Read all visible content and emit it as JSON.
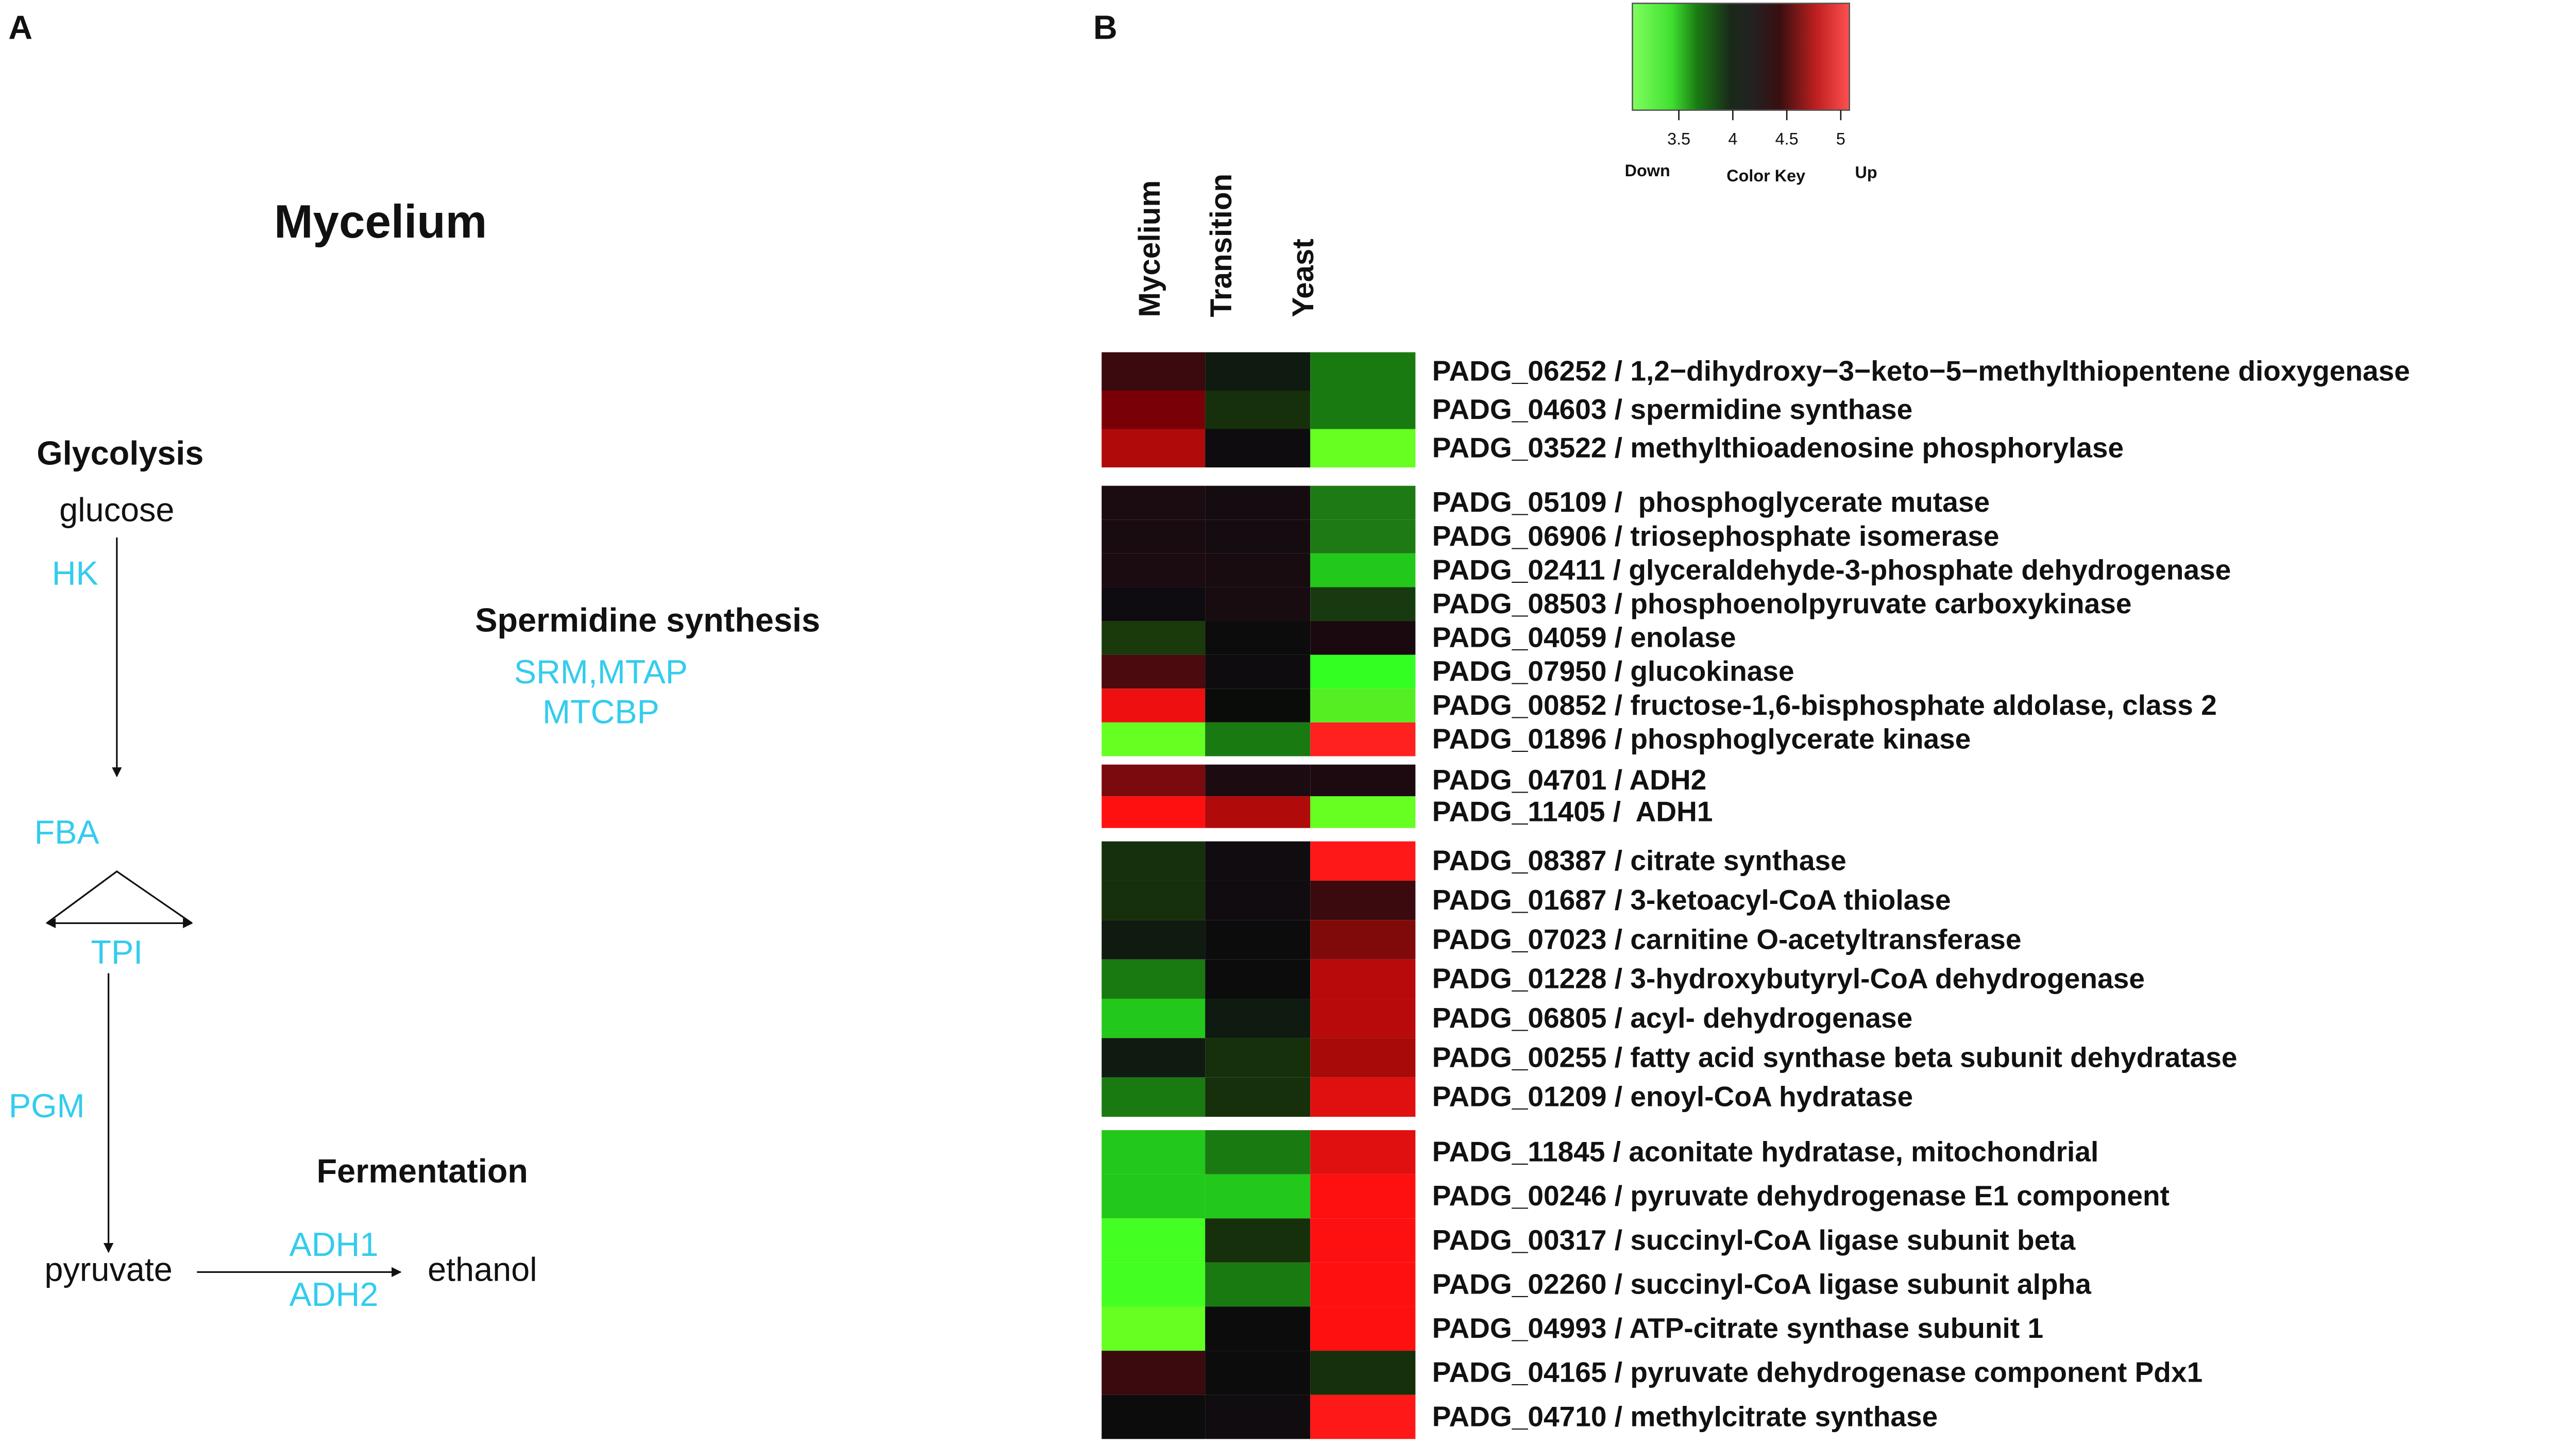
{
  "panel_a": {
    "label": "A",
    "title": "Mycelium",
    "glycolysis": {
      "title": "Glycolysis",
      "glucose": "glucose",
      "enzymes": [
        "HK",
        "FBA",
        "TPI",
        "PGM"
      ],
      "pyruvate": "pyruvate"
    },
    "fermentation": {
      "title": "Fermentation",
      "enzymes": [
        "ADH1",
        "ADH2"
      ],
      "ethanol": "ethanol"
    },
    "spermidine": {
      "title": "Spermidine synthesis",
      "enzymes": [
        "SRM,MTAP",
        "MTCBP"
      ]
    }
  },
  "panel_b": {
    "label": "B",
    "color_key": {
      "title": "Color Key",
      "low": "Down",
      "high": "Up",
      "lim": [
        3.07,
        5.08
      ],
      "ticks": [
        3.5,
        4,
        4.5,
        5
      ]
    },
    "columns": [
      "Mycelium",
      "Transition",
      "Yeast"
    ],
    "groups": [
      [
        {
          "label": "PADG_06252 / 1,2−dihydroxy−3−keto−5−methylthiopentene dioxygenase",
          "colors": [
            "#3a0a0e",
            "#0f1a10",
            "#1a7a12"
          ]
        },
        {
          "label": "PADG_04603 / spermidine synthase",
          "colors": [
            "#7a0008",
            "#15300a",
            "#1a7a12"
          ]
        },
        {
          "label": "PADG_03522 / methylthioadenosine phosphorylase",
          "colors": [
            "#b00a0a",
            "#0e0c0e",
            "#66ff22"
          ]
        }
      ],
      [
        {
          "label": "PADG_05109 /  phosphoglycerate mutase",
          "colors": [
            "#1a0c10",
            "#140c10",
            "#1e7a14"
          ]
        },
        {
          "label": "PADG_06906 / triosephosphate isomerase",
          "colors": [
            "#180c10",
            "#140c10",
            "#1e7a14"
          ]
        },
        {
          "label": "PADG_02411 / glyceraldehyde-3-phosphate dehydrogenase",
          "colors": [
            "#1a0c10",
            "#180c10",
            "#22c81a"
          ]
        },
        {
          "label": "PADG_08503 / phosphoenolpyruvate carboxykinase",
          "colors": [
            "#0e0c10",
            "#180c10",
            "#183a10"
          ]
        },
        {
          "label": "PADG_04059 / enolase",
          "colors": [
            "#1a3a0c",
            "#0c0c0c",
            "#1a0a10"
          ]
        },
        {
          "label": "PADG_07950 / glucokinase",
          "colors": [
            "#4a0a0e",
            "#0e0c0e",
            "#33ff22"
          ]
        },
        {
          "label": "PADG_00852 / fructose-1,6-bisphosphate aldolase, class 2",
          "colors": [
            "#ee1010",
            "#0a0c0a",
            "#55ee22"
          ]
        },
        {
          "label": "PADG_01896 / phosphoglycerate kinase",
          "colors": [
            "#66ff22",
            "#1a7a12",
            "#ff2020"
          ]
        }
      ],
      [
        {
          "label": "PADG_04701 / ADH2",
          "colors": [
            "#7a0a0e",
            "#1c0c12",
            "#1c0a10"
          ]
        },
        {
          "label": "PADG_11405 /  ADH1",
          "colors": [
            "#ff1010",
            "#b00a0a",
            "#66ff22"
          ]
        }
      ],
      [
        {
          "label": "PADG_08387 / citrate synthase",
          "colors": [
            "#17300c",
            "#100c10",
            "#ff1818"
          ]
        },
        {
          "label": "PADG_01687 / 3-ketoacyl-CoA thiolase",
          "colors": [
            "#17300c",
            "#100c10",
            "#3a0a0e"
          ]
        },
        {
          "label": "PADG_07023 / carnitine O-acetyltransferase",
          "colors": [
            "#101a10",
            "#0c0c0c",
            "#800a0a"
          ]
        },
        {
          "label": "PADG_01228 / 3-hydroxybutyryl-CoA dehydrogenase",
          "colors": [
            "#1a7a12",
            "#0c0c0c",
            "#b80a0a"
          ]
        },
        {
          "label": "PADG_06805 / acyl- dehydrogenase",
          "colors": [
            "#22c81a",
            "#0f1a10",
            "#b80a0a"
          ]
        },
        {
          "label": "PADG_00255 / fatty acid synthase beta subunit dehydratase",
          "colors": [
            "#0f1a10",
            "#15300a",
            "#a80a0a"
          ]
        },
        {
          "label": "PADG_01209 / enoyl-CoA hydratase",
          "colors": [
            "#1a7a12",
            "#15300a",
            "#e01010"
          ]
        }
      ],
      [
        {
          "label": "PADG_11845 / aconitate hydratase, mitochondrial",
          "colors": [
            "#22c81a",
            "#1a7a12",
            "#e01010"
          ]
        },
        {
          "label": "PADG_00246 / pyruvate dehydrogenase E1 component",
          "colors": [
            "#22c81a",
            "#22c81a",
            "#ff1010"
          ]
        },
        {
          "label": "PADG_00317 / succinyl-CoA ligase subunit beta",
          "colors": [
            "#44ff22",
            "#15300a",
            "#ff1010"
          ]
        },
        {
          "label": "PADG_02260 / succinyl-CoA ligase subunit alpha",
          "colors": [
            "#44ff22",
            "#1a7a12",
            "#ff1010"
          ]
        },
        {
          "label": "PADG_04993 / ATP-citrate synthase subunit 1",
          "colors": [
            "#66ff22",
            "#0c0c0c",
            "#ff1010"
          ]
        },
        {
          "label": "PADG_04165 / pyruvate dehydrogenase component Pdx1",
          "colors": [
            "#3a0a0e",
            "#0c0c0c",
            "#15300a"
          ]
        },
        {
          "label": "PADG_04710 / methylcitrate synthase",
          "colors": [
            "#0c0c0c",
            "#100c10",
            "#ff1818"
          ]
        }
      ]
    ]
  }
}
